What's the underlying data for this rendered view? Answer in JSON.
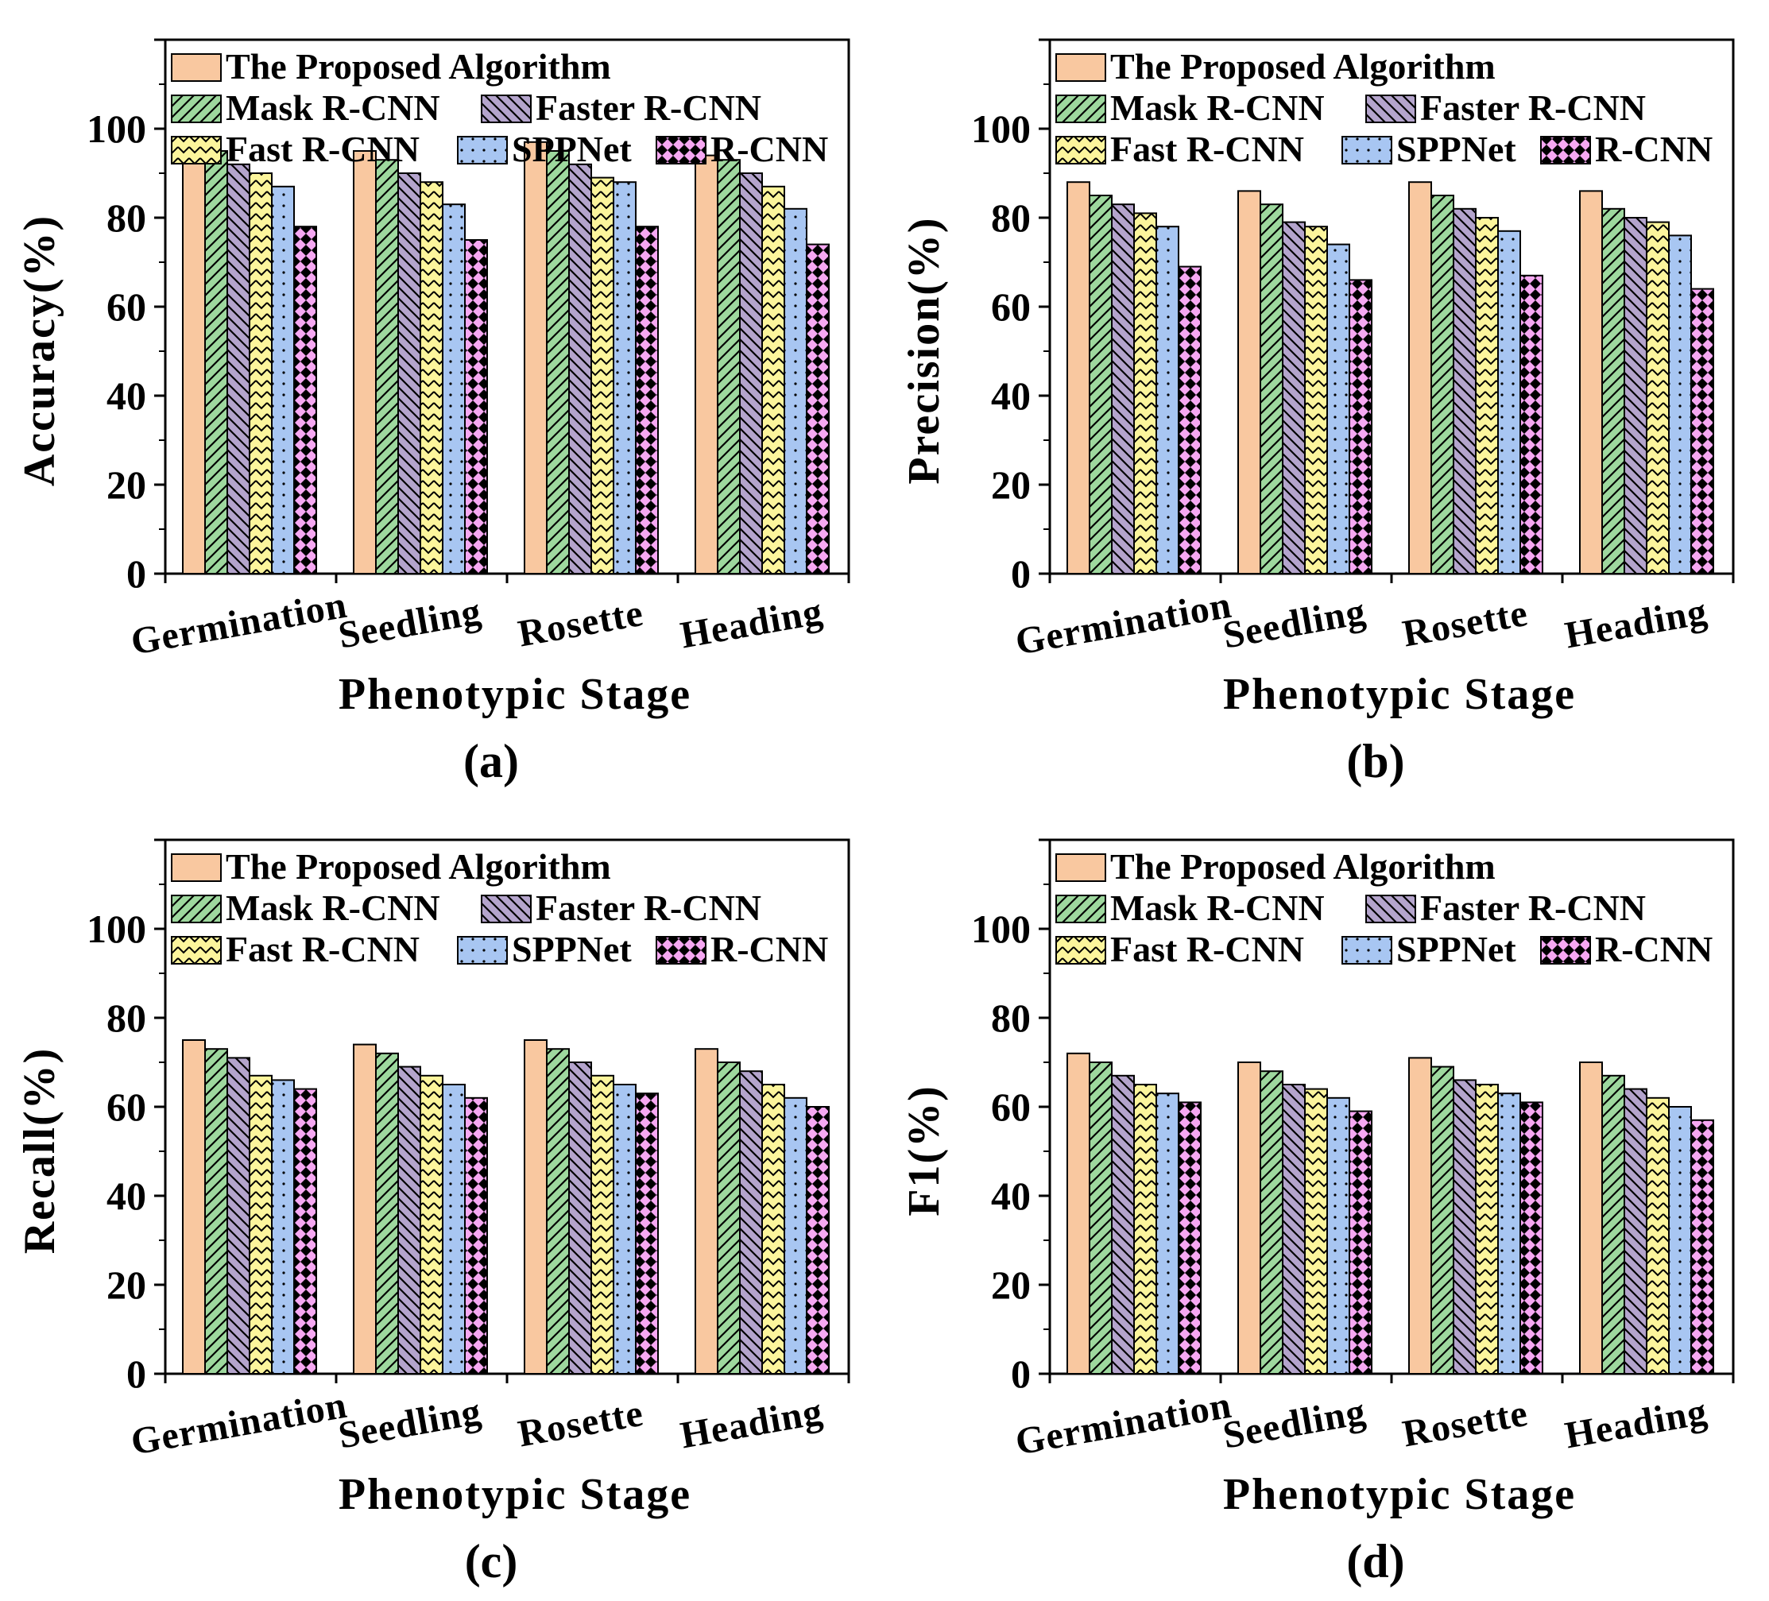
{
  "figure": {
    "categories": [
      "Germination",
      "Seedling",
      "Rosette",
      "Heading"
    ],
    "y_ticks": [
      0,
      20,
      40,
      60,
      80,
      100
    ],
    "ylim": [
      0,
      120
    ],
    "series_styles": [
      {
        "name": "The Proposed Algorithm",
        "color": "#f9c8a0",
        "pattern": "none"
      },
      {
        "name": "Mask R-CNN",
        "color": "#9ed89e",
        "pattern": "diag-right"
      },
      {
        "name": "Faster R-CNN",
        "color": "#b4a4cc",
        "pattern": "diag-left"
      },
      {
        "name": "Fast R-CNN",
        "color": "#fcf59c",
        "pattern": "zigzag"
      },
      {
        "name": "SPPNet",
        "color": "#a8c6f2",
        "pattern": "dots"
      },
      {
        "name": "R-CNN",
        "color": "#f6a8f2",
        "pattern": "diamonds"
      }
    ]
  },
  "chart_data": [
    {
      "id": "a",
      "type": "bar",
      "panel_label": "(a)",
      "title": "",
      "xlabel": "Phenotypic Stage",
      "ylabel": "Accuracy(%)",
      "categories": [
        "Germination",
        "Seedling",
        "Rosette",
        "Heading"
      ],
      "ylim": [
        0,
        120
      ],
      "legend": "top",
      "series": [
        {
          "name": "The Proposed Algorithm",
          "values": [
            97,
            95,
            97,
            94
          ]
        },
        {
          "name": "Mask R-CNN",
          "values": [
            95,
            93,
            95,
            93
          ]
        },
        {
          "name": "Faster R-CNN",
          "values": [
            92,
            90,
            92,
            90
          ]
        },
        {
          "name": "Fast R-CNN",
          "values": [
            90,
            88,
            89,
            87
          ]
        },
        {
          "name": "SPPNet",
          "values": [
            87,
            83,
            88,
            82
          ]
        },
        {
          "name": "R-CNN",
          "values": [
            78,
            75,
            78,
            74
          ]
        }
      ]
    },
    {
      "id": "b",
      "type": "bar",
      "panel_label": "(b)",
      "title": "",
      "xlabel": "Phenotypic Stage",
      "ylabel": "Precision(%)",
      "categories": [
        "Germination",
        "Seedling",
        "Rosette",
        "Heading"
      ],
      "ylim": [
        0,
        120
      ],
      "legend": "top",
      "series": [
        {
          "name": "The Proposed Algorithm",
          "values": [
            88,
            86,
            88,
            86
          ]
        },
        {
          "name": "Mask R-CNN",
          "values": [
            85,
            83,
            85,
            82
          ]
        },
        {
          "name": "Faster R-CNN",
          "values": [
            83,
            79,
            82,
            80
          ]
        },
        {
          "name": "Fast R-CNN",
          "values": [
            81,
            78,
            80,
            79
          ]
        },
        {
          "name": "SPPNet",
          "values": [
            78,
            74,
            77,
            76
          ]
        },
        {
          "name": "R-CNN",
          "values": [
            69,
            66,
            67,
            64
          ]
        }
      ]
    },
    {
      "id": "c",
      "type": "bar",
      "panel_label": "(c)",
      "title": "",
      "xlabel": "Phenotypic Stage",
      "ylabel": "Recall(%)",
      "categories": [
        "Germination",
        "Seedling",
        "Rosette",
        "Heading"
      ],
      "ylim": [
        0,
        120
      ],
      "legend": "top",
      "series": [
        {
          "name": "The Proposed Algorithm",
          "values": [
            75,
            74,
            75,
            73
          ]
        },
        {
          "name": "Mask R-CNN",
          "values": [
            73,
            72,
            73,
            70
          ]
        },
        {
          "name": "Faster R-CNN",
          "values": [
            71,
            69,
            70,
            68
          ]
        },
        {
          "name": "Fast R-CNN",
          "values": [
            67,
            67,
            67,
            65
          ]
        },
        {
          "name": "SPPNet",
          "values": [
            66,
            65,
            65,
            62
          ]
        },
        {
          "name": "R-CNN",
          "values": [
            64,
            62,
            63,
            60
          ]
        }
      ]
    },
    {
      "id": "d",
      "type": "bar",
      "panel_label": "(d)",
      "title": "",
      "xlabel": "Phenotypic Stage",
      "ylabel": "F1(%)",
      "categories": [
        "Germination",
        "Seedling",
        "Rosette",
        "Heading"
      ],
      "ylim": [
        0,
        120
      ],
      "legend": "top",
      "series": [
        {
          "name": "The Proposed Algorithm",
          "values": [
            72,
            70,
            71,
            70
          ]
        },
        {
          "name": "Mask R-CNN",
          "values": [
            70,
            68,
            69,
            67
          ]
        },
        {
          "name": "Faster R-CNN",
          "values": [
            67,
            65,
            66,
            64
          ]
        },
        {
          "name": "Fast R-CNN",
          "values": [
            65,
            64,
            65,
            62
          ]
        },
        {
          "name": "SPPNet",
          "values": [
            63,
            62,
            63,
            60
          ]
        },
        {
          "name": "R-CNN",
          "values": [
            61,
            59,
            61,
            57
          ]
        }
      ]
    }
  ]
}
